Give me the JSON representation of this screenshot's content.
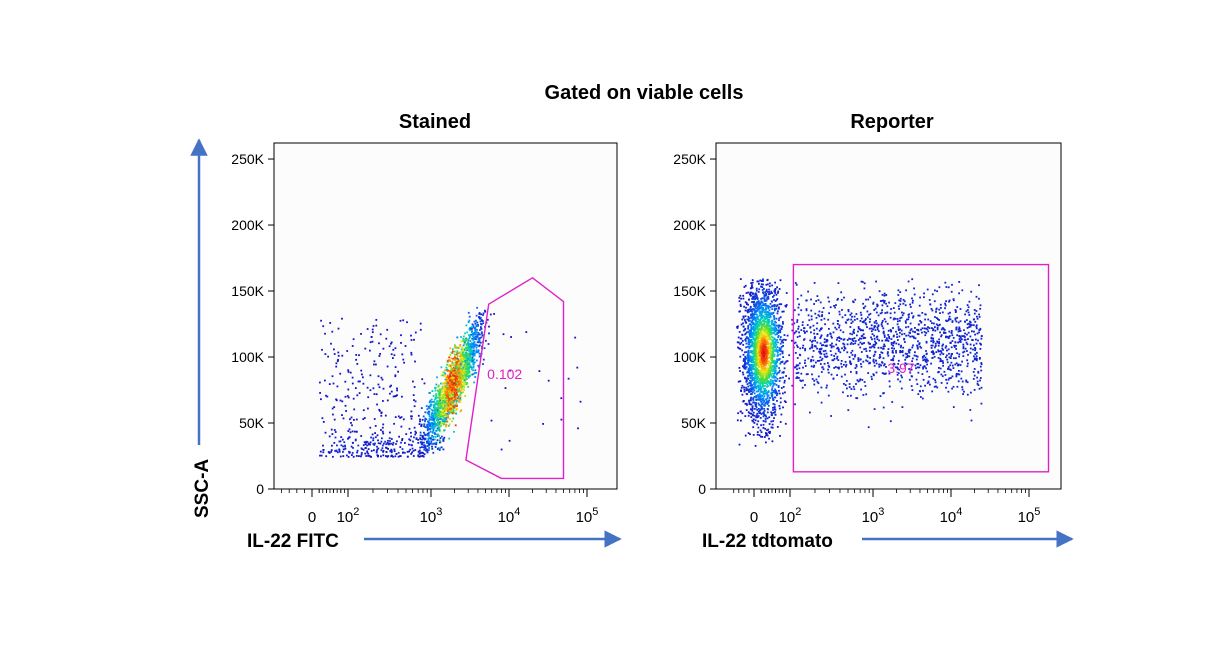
{
  "figure": {
    "title": "Gated on viable cells",
    "ylabel": "SSC-A",
    "accent_arrow_color": "#4472C4",
    "gate_color": "#E020C8"
  },
  "chart_data": [
    {
      "type": "scatter",
      "title": "Stained",
      "xlabel": "IL-22 FITC",
      "ylabel": "SSC-A",
      "x_scale": "biexponential",
      "x_tick_labels": [
        "0",
        "10^2",
        "10^3",
        "10^4",
        "10^5"
      ],
      "x_ticks": [
        0,
        100,
        1000,
        10000,
        100000
      ],
      "y_tick_labels": [
        "0",
        "50K",
        "100K",
        "150K",
        "200K",
        "250K"
      ],
      "y_ticks": [
        0,
        50000,
        100000,
        150000,
        200000,
        250000
      ],
      "ylim": [
        0,
        262144
      ],
      "gate": {
        "shape": "polygon",
        "vertices": [
          [
            5500,
            140000
          ],
          [
            20000,
            160000
          ],
          [
            50000,
            142000
          ],
          [
            50000,
            8000
          ],
          [
            8000,
            8000
          ],
          [
            2800,
            22000
          ]
        ],
        "percent_label": "0.102"
      },
      "populations": [
        {
          "description": "main dense diagonal population",
          "x_range": [
            900,
            5000
          ],
          "y_range": [
            27000,
            135000
          ],
          "density": "high"
        },
        {
          "description": "sparse low-intensity scatter",
          "x_range": [
            -40,
            1000
          ],
          "y_range": [
            25000,
            135000
          ],
          "density": "low"
        }
      ]
    },
    {
      "type": "scatter",
      "title": "Reporter",
      "xlabel": "IL-22 tdtomato",
      "ylabel": "SSC-A",
      "x_scale": "biexponential",
      "x_tick_labels": [
        "0",
        "10^2",
        "10^3",
        "10^4",
        "10^5"
      ],
      "x_ticks": [
        0,
        100,
        1000,
        10000,
        100000
      ],
      "y_tick_labels": [
        "0",
        "50K",
        "100K",
        "150K",
        "200K",
        "250K"
      ],
      "y_ticks": [
        0,
        50000,
        100000,
        150000,
        200000,
        250000
      ],
      "ylim": [
        0,
        262144
      ],
      "gate": {
        "shape": "rectangle",
        "vertices": [
          [
            110,
            170000
          ],
          [
            180000,
            170000
          ],
          [
            180000,
            13000
          ],
          [
            110,
            13000
          ]
        ],
        "percent_label": "3.97"
      },
      "populations": [
        {
          "description": "negative population near zero",
          "x_range": [
            -60,
            100
          ],
          "y_range": [
            33000,
            160000
          ],
          "density": "high"
        },
        {
          "description": "reporter-positive scatter",
          "x_range": [
            100,
            25000
          ],
          "y_range": [
            45000,
            160000
          ],
          "density": "medium"
        }
      ]
    }
  ]
}
